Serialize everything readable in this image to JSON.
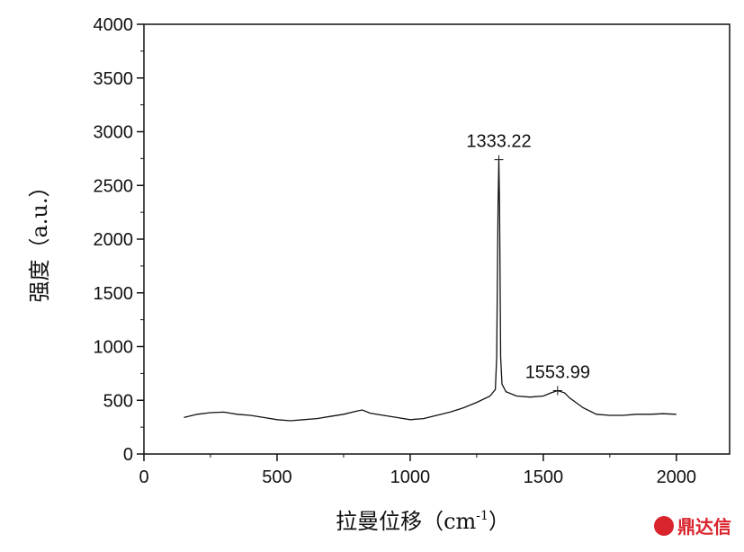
{
  "chart_data": {
    "type": "line",
    "y_label": "强度（a.u.）",
    "x_label": {
      "text": "拉曼位移（cm",
      "superscript": "-1",
      "close": "）"
    },
    "series": [
      {
        "name": null,
        "color": "#111111",
        "x": [
          150,
          200,
          250,
          300,
          350,
          400,
          450,
          500,
          550,
          600,
          650,
          700,
          750,
          800,
          820,
          850,
          900,
          950,
          1000,
          1050,
          1100,
          1150,
          1200,
          1250,
          1300,
          1320,
          1325,
          1330,
          1333.22,
          1336,
          1340,
          1345,
          1360,
          1400,
          1450,
          1500,
          1530,
          1553.99,
          1580,
          1600,
          1650,
          1700,
          1750,
          1800,
          1850,
          1900,
          1950,
          2000
        ],
        "values": [
          340,
          370,
          385,
          390,
          370,
          360,
          340,
          320,
          310,
          320,
          330,
          350,
          370,
          400,
          410,
          380,
          360,
          340,
          320,
          330,
          360,
          390,
          430,
          480,
          540,
          600,
          900,
          2300,
          2740,
          2300,
          900,
          650,
          580,
          540,
          530,
          540,
          570,
          590,
          570,
          520,
          430,
          370,
          360,
          360,
          370,
          370,
          375,
          370
        ]
      }
    ],
    "annotations": [
      {
        "text": "1333.22",
        "x": 1333.22,
        "y": 2740
      },
      {
        "text": "1553.99",
        "x": 1553.99,
        "y": 590
      }
    ],
    "xlim": [
      0,
      2200
    ],
    "ylim": [
      0,
      4000
    ],
    "xticks": [
      0,
      500,
      1000,
      1500,
      2000
    ],
    "xminorticks": [
      250,
      750,
      1250,
      1750
    ],
    "yticks": [
      0,
      500,
      1000,
      1500,
      2000,
      2500,
      3000,
      3500,
      4000
    ],
    "yminorticks": [
      250,
      750,
      1250,
      1750,
      2250,
      2750,
      3250,
      3750
    ],
    "watermark": "鼎达信"
  }
}
